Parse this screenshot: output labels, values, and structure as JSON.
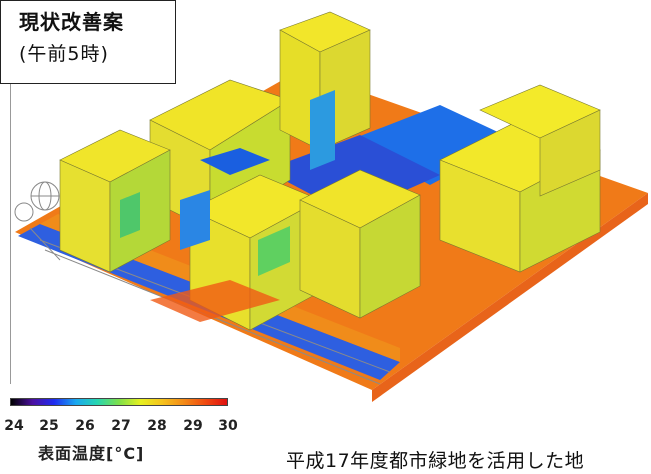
{
  "title": {
    "main": "現状改善案",
    "sub": "(午前5時)"
  },
  "legend": {
    "ticks": [
      "24",
      "25",
      "26",
      "27",
      "28",
      "29",
      "30"
    ],
    "label": "表面温度[°C]",
    "colors": [
      "#000000",
      "#4b0fa0",
      "#1f2cf0",
      "#1aa8f0",
      "#27d6b0",
      "#7ee04a",
      "#e6f020",
      "#f5c21c",
      "#f38a17",
      "#f04a10",
      "#e01010"
    ]
  },
  "caption": "平成17年度都市緑地を活用した地"
}
